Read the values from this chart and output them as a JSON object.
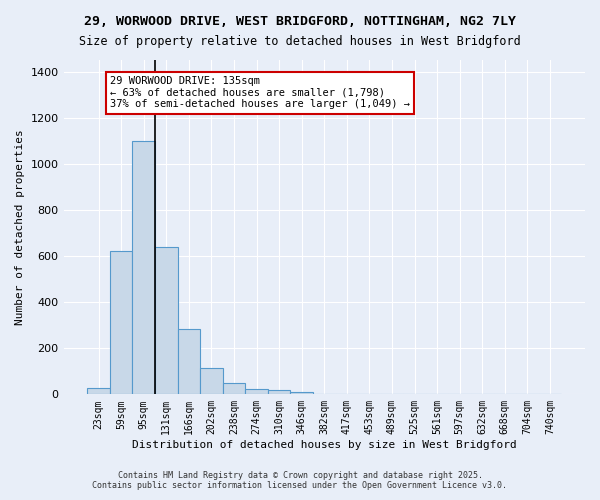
{
  "title_line1": "29, WORWOOD DRIVE, WEST BRIDGFORD, NOTTINGHAM, NG2 7LY",
  "title_line2": "Size of property relative to detached houses in West Bridgford",
  "xlabel": "Distribution of detached houses by size in West Bridgford",
  "ylabel": "Number of detached properties",
  "bar_color": "#c8d8e8",
  "bar_edge_color": "#5599cc",
  "background_color": "#e8eef8",
  "grid_color": "#ffffff",
  "categories": [
    "23sqm",
    "59sqm",
    "95sqm",
    "131sqm",
    "166sqm",
    "202sqm",
    "238sqm",
    "274sqm",
    "310sqm",
    "346sqm",
    "382sqm",
    "417sqm",
    "453sqm",
    "489sqm",
    "525sqm",
    "561sqm",
    "597sqm",
    "632sqm",
    "668sqm",
    "704sqm",
    "740sqm"
  ],
  "values": [
    27,
    620,
    1100,
    640,
    285,
    115,
    48,
    22,
    18,
    10,
    0,
    0,
    0,
    0,
    0,
    0,
    0,
    0,
    0,
    0,
    0
  ],
  "ylim": [
    0,
    1450
  ],
  "yticks": [
    0,
    200,
    400,
    600,
    800,
    1000,
    1200,
    1400
  ],
  "annotation_text": "29 WORWOOD DRIVE: 135sqm\n← 63% of detached houses are smaller (1,798)\n37% of semi-detached houses are larger (1,049) →",
  "vline_x": 3,
  "vline_color": "#000000",
  "annotation_box_color": "#ffffff",
  "annotation_box_edge": "#cc0000",
  "footer_line1": "Contains HM Land Registry data © Crown copyright and database right 2025.",
  "footer_line2": "Contains public sector information licensed under the Open Government Licence v3.0."
}
